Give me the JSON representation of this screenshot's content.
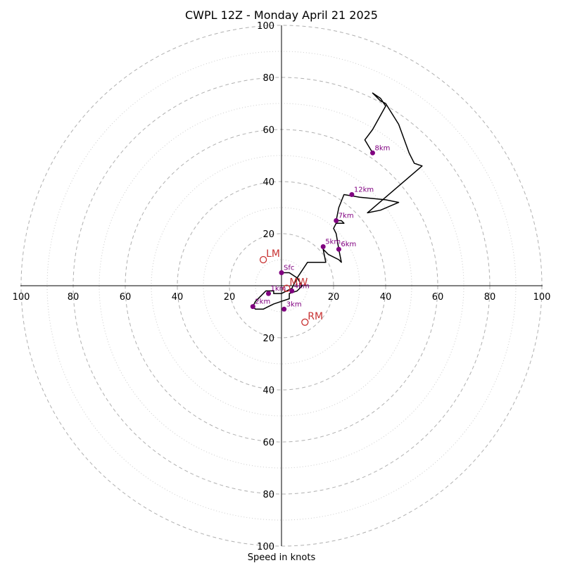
{
  "chart_data": {
    "type": "scatter",
    "subtype": "hodograph",
    "title": "CWPL 12Z - Monday April 21 2025",
    "xlabel": "Speed in knots",
    "xlim": [
      -100,
      100
    ],
    "ylim": [
      -100,
      100
    ],
    "ring_step": 10,
    "tick_labels": [
      "100",
      "80",
      "60",
      "40",
      "20",
      "20",
      "40",
      "60",
      "80",
      "100"
    ],
    "hodograph_trace": [
      [
        0,
        5
      ],
      [
        3,
        5
      ],
      [
        6,
        3
      ],
      [
        8,
        0
      ],
      [
        6,
        -2
      ],
      [
        3,
        -3
      ],
      [
        3,
        -5
      ],
      [
        0,
        -6
      ],
      [
        -3,
        -7
      ],
      [
        -5,
        -8
      ],
      [
        -7,
        -9
      ],
      [
        -10,
        -9
      ],
      [
        -11,
        -8
      ],
      [
        -10,
        -6
      ],
      [
        -8,
        -4
      ],
      [
        -6,
        -2
      ],
      [
        -3,
        -2
      ],
      [
        -3,
        -3
      ],
      [
        0,
        -3
      ],
      [
        4,
        -1
      ],
      [
        6,
        3
      ],
      [
        10,
        9
      ],
      [
        17,
        9
      ],
      [
        16,
        14
      ],
      [
        18,
        12
      ],
      [
        22,
        10
      ],
      [
        23,
        9
      ],
      [
        22,
        14
      ],
      [
        21,
        20
      ],
      [
        20,
        22
      ],
      [
        21,
        24
      ],
      [
        24,
        24
      ],
      [
        23,
        25
      ],
      [
        21,
        25
      ],
      [
        22,
        30
      ],
      [
        24,
        35
      ],
      [
        30,
        34
      ],
      [
        40,
        33
      ],
      [
        45,
        32
      ],
      [
        38,
        29
      ],
      [
        33,
        28
      ],
      [
        54,
        46
      ],
      [
        51,
        47
      ],
      [
        49,
        51
      ],
      [
        45,
        62
      ],
      [
        40,
        70
      ],
      [
        38,
        71
      ],
      [
        35,
        74
      ],
      [
        38,
        72
      ],
      [
        40,
        69
      ],
      [
        35,
        60
      ],
      [
        32,
        56
      ],
      [
        35,
        51
      ],
      [
        32,
        56
      ]
    ],
    "height_markers": [
      {
        "label": "Sfc",
        "x": 0,
        "y": 5
      },
      {
        "label": "1km",
        "x": -5,
        "y": -3
      },
      {
        "label": "2km",
        "x": -11,
        "y": -8
      },
      {
        "label": "3km",
        "x": 1,
        "y": -9
      },
      {
        "label": "4km",
        "x": 4,
        "y": -2
      },
      {
        "label": "5km",
        "x": 16,
        "y": 15
      },
      {
        "label": "6km",
        "x": 22,
        "y": 14
      },
      {
        "label": "7km",
        "x": 21,
        "y": 25
      },
      {
        "label": "8km",
        "x": 35,
        "y": 51
      },
      {
        "label": "12km",
        "x": 27,
        "y": 35
      }
    ],
    "motion_markers": [
      {
        "label": "LM",
        "x": -7,
        "y": 10
      },
      {
        "label": "MW",
        "x": 2,
        "y": -1
      },
      {
        "label": "RM",
        "x": 9,
        "y": -14
      }
    ],
    "colors": {
      "trace": "#000000",
      "height_marker": "#800080",
      "motion_marker": "#c83232",
      "ring_major": "#b0b0b0",
      "ring_minor": "#cccccc",
      "axis": "#000000"
    }
  }
}
